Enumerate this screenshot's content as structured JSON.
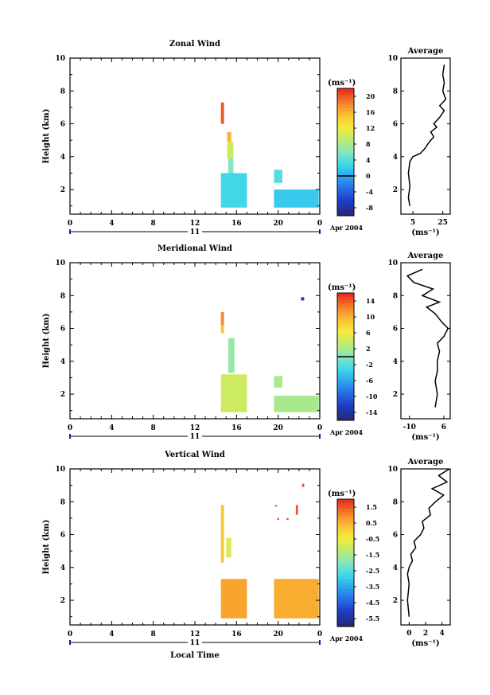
{
  "chart_data": [
    {
      "type": "heatmap",
      "title": "Zonal Wind",
      "ylabel": "Height (km)",
      "xlabel": "",
      "x_ticks": [
        "0",
        "4",
        "8",
        "12",
        "16",
        "20",
        "0"
      ],
      "y_ticks": [
        "2",
        "4",
        "6",
        "8",
        "10"
      ],
      "date_label": "11",
      "month_label": "Apr 2004",
      "unit_label": "(ms⁻¹)",
      "colorbar": {
        "labels": [
          "20",
          "16",
          "12",
          "8",
          "4",
          "0",
          "-4",
          "-8"
        ],
        "range": [
          -10,
          22
        ],
        "zero_line": 0
      },
      "regions": [
        {
          "hours": [
            14.5,
            14.8
          ],
          "heights": [
            6.0,
            7.3
          ],
          "value": 20
        },
        {
          "hours": [
            15.1,
            15.5
          ],
          "heights": [
            4.9,
            5.5
          ],
          "value": 16
        },
        {
          "hours": [
            15.1,
            15.7
          ],
          "heights": [
            3.9,
            4.9
          ],
          "value": 10
        },
        {
          "hours": [
            15.2,
            15.7
          ],
          "heights": [
            3.0,
            3.9
          ],
          "value": 6
        },
        {
          "hours": [
            14.5,
            17.0
          ],
          "heights": [
            0.9,
            3.0
          ],
          "value": 3
        },
        {
          "hours": [
            19.6,
            20.4
          ],
          "heights": [
            2.4,
            3.2
          ],
          "value": 4
        },
        {
          "hours": [
            19.6,
            23.9
          ],
          "heights": [
            0.9,
            2.0
          ],
          "value": 2
        }
      ],
      "profile": {
        "title": "Average",
        "xlim": [
          -3,
          30
        ],
        "x_ticks": [
          "5",
          "25"
        ],
        "unit": "(ms⁻¹)",
        "points": [
          [
            3,
            1.0
          ],
          [
            2,
            1.5
          ],
          [
            3,
            2.2
          ],
          [
            2,
            3.0
          ],
          [
            3,
            3.7
          ],
          [
            5,
            4.0
          ],
          [
            10,
            4.2
          ],
          [
            13,
            4.5
          ],
          [
            16,
            4.9
          ],
          [
            19,
            5.2
          ],
          [
            17,
            5.5
          ],
          [
            21,
            5.8
          ],
          [
            19,
            6.0
          ],
          [
            23,
            6.4
          ],
          [
            26,
            6.8
          ],
          [
            23,
            7.1
          ],
          [
            27,
            7.5
          ],
          [
            25,
            8.0
          ],
          [
            26,
            8.5
          ],
          [
            25,
            9.0
          ],
          [
            26,
            9.6
          ]
        ]
      }
    },
    {
      "type": "heatmap",
      "title": "Meridional Wind",
      "ylabel": "Height (km)",
      "xlabel": "",
      "x_ticks": [
        "0",
        "4",
        "8",
        "12",
        "16",
        "20",
        "0"
      ],
      "y_ticks": [
        "2",
        "4",
        "6",
        "8",
        "10"
      ],
      "date_label": "11",
      "month_label": "Apr 2004",
      "unit_label": "(ms⁻¹)",
      "colorbar": {
        "labels": [
          "14",
          "10",
          "6",
          "2",
          "-2",
          "-6",
          "-10",
          "-14"
        ],
        "range": [
          -16,
          16
        ],
        "zero_line": 0
      },
      "regions": [
        {
          "hours": [
            14.5,
            14.8
          ],
          "heights": [
            6.2,
            7.0
          ],
          "value": 12
        },
        {
          "hours": [
            14.5,
            14.8
          ],
          "heights": [
            5.7,
            6.2
          ],
          "value": 9
        },
        {
          "hours": [
            15.2,
            15.8
          ],
          "heights": [
            3.3,
            5.4
          ],
          "value": 1
        },
        {
          "hours": [
            14.5,
            17.0
          ],
          "heights": [
            0.9,
            3.2
          ],
          "value": 4
        },
        {
          "hours": [
            19.6,
            20.4
          ],
          "heights": [
            2.4,
            3.1
          ],
          "value": 2
        },
        {
          "hours": [
            19.6,
            23.9
          ],
          "heights": [
            0.9,
            1.9
          ],
          "value": 2
        },
        {
          "hours": [
            22.2,
            22.5
          ],
          "heights": [
            7.7,
            7.9
          ],
          "value": -12
        }
      ],
      "profile": {
        "title": "Average",
        "xlim": [
          -14,
          9
        ],
        "x_ticks": [
          "-10",
          "6"
        ],
        "unit": "(ms⁻¹)",
        "points": [
          [
            2,
            1.2
          ],
          [
            3,
            2.0
          ],
          [
            2,
            2.8
          ],
          [
            3,
            3.4
          ],
          [
            3,
            4.0
          ],
          [
            4,
            4.6
          ],
          [
            3,
            5.1
          ],
          [
            6,
            5.5
          ],
          [
            8,
            6.0
          ],
          [
            5,
            6.4
          ],
          [
            2,
            6.9
          ],
          [
            -2,
            7.3
          ],
          [
            4,
            7.6
          ],
          [
            -4,
            8.0
          ],
          [
            1,
            8.4
          ],
          [
            -8,
            8.8
          ],
          [
            -11,
            9.2
          ],
          [
            -4,
            9.6
          ]
        ]
      }
    },
    {
      "type": "heatmap",
      "title": "Vertical Wind",
      "ylabel": "Height (km)",
      "xlabel": "Local Time",
      "x_ticks": [
        "0",
        "4",
        "8",
        "12",
        "16",
        "20",
        "0"
      ],
      "y_ticks": [
        "2",
        "4",
        "6",
        "8",
        "10"
      ],
      "date_label": "11",
      "month_label": "Apr 2004",
      "unit_label": "(ms⁻¹)",
      "colorbar": {
        "labels": [
          "1.5",
          "0.5",
          "-0.5",
          "-1.5",
          "-2.5",
          "-3.5",
          "-4.5",
          "-5.5"
        ],
        "range": [
          -6.0,
          2.0
        ],
        "zero_line": null
      },
      "regions": [
        {
          "hours": [
            14.5,
            14.8
          ],
          "heights": [
            4.3,
            7.8
          ],
          "value": 0.2
        },
        {
          "hours": [
            15.0,
            15.5
          ],
          "heights": [
            4.6,
            5.8
          ],
          "value": -0.8
        },
        {
          "hours": [
            14.5,
            17.0
          ],
          "heights": [
            0.9,
            3.3
          ],
          "value": 0.7
        },
        {
          "hours": [
            19.6,
            23.9
          ],
          "heights": [
            0.9,
            3.3
          ],
          "value": 0.6
        },
        {
          "hours": [
            19.7,
            19.9
          ],
          "heights": [
            7.7,
            7.8
          ],
          "value": 1.6
        },
        {
          "hours": [
            21.7,
            21.9
          ],
          "heights": [
            7.2,
            7.8
          ],
          "value": 1.6
        },
        {
          "hours": [
            22.3,
            22.5
          ],
          "heights": [
            8.9,
            9.1
          ],
          "value": 1.6
        },
        {
          "hours": [
            19.9,
            20.1
          ],
          "heights": [
            6.9,
            7.0
          ],
          "value": 1.6
        },
        {
          "hours": [
            20.8,
            21.0
          ],
          "heights": [
            6.9,
            7.0
          ],
          "value": 1.6
        }
      ],
      "profile": {
        "title": "Average",
        "xlim": [
          -1,
          5
        ],
        "x_ticks": [
          "0",
          "2",
          "4"
        ],
        "unit": "(ms⁻¹)",
        "points": [
          [
            0.0,
            1.0
          ],
          [
            -0.2,
            2.0
          ],
          [
            0.0,
            3.0
          ],
          [
            -0.2,
            3.6
          ],
          [
            0.0,
            4.0
          ],
          [
            0.4,
            4.4
          ],
          [
            0.2,
            4.8
          ],
          [
            0.8,
            5.2
          ],
          [
            0.6,
            5.6
          ],
          [
            1.4,
            6.0
          ],
          [
            1.8,
            6.4
          ],
          [
            1.6,
            6.8
          ],
          [
            2.6,
            7.2
          ],
          [
            2.4,
            7.6
          ],
          [
            3.2,
            8.0
          ],
          [
            4.2,
            8.4
          ],
          [
            2.8,
            8.8
          ],
          [
            4.6,
            9.2
          ],
          [
            3.6,
            9.6
          ],
          [
            4.9,
            10.0
          ]
        ]
      }
    }
  ]
}
